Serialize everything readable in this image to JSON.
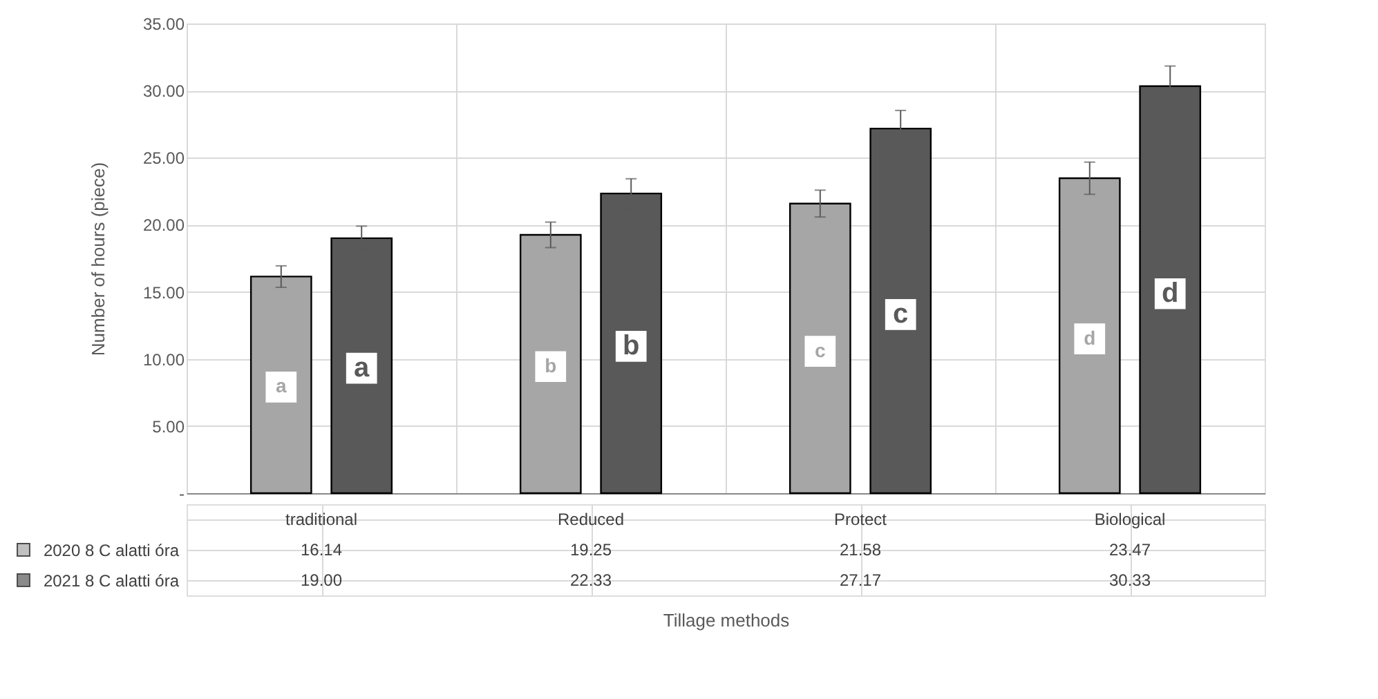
{
  "chart_data": {
    "type": "bar",
    "categories": [
      "traditional",
      "Reduced",
      "Protect",
      "Biological"
    ],
    "series": [
      {
        "name": "2020 8 C alatti óra",
        "color": "#a6a6a6",
        "values": [
          16.14,
          19.25,
          21.58,
          23.47
        ],
        "value_labels": [
          "16.14",
          "19.25",
          "21.58",
          "23.47"
        ],
        "errors": [
          0.8,
          0.95,
          1.0,
          1.2
        ]
      },
      {
        "name": "2021 8 C alatti óra",
        "color": "#595959",
        "values": [
          19.0,
          22.33,
          27.17,
          30.33
        ],
        "value_labels": [
          "19.00",
          "22.33",
          "27.17",
          "30.33"
        ],
        "errors": [
          0.9,
          1.1,
          1.35,
          1.5
        ]
      }
    ],
    "ylabel": "Number of hours (piece)",
    "xlabel": "Tillage methods",
    "ylim": [
      0,
      35
    ],
    "yticks": [
      {
        "value": 0,
        "label": "-"
      },
      {
        "value": 5,
        "label": "5.00"
      },
      {
        "value": 10,
        "label": "10.00"
      },
      {
        "value": 15,
        "label": "15.00"
      },
      {
        "value": 20,
        "label": "20.00"
      },
      {
        "value": 25,
        "label": "25.00"
      },
      {
        "value": 30,
        "label": "30.00"
      },
      {
        "value": 35,
        "label": "35.00"
      }
    ],
    "grid": "y",
    "legend": "bottom left",
    "annotations": [
      "a",
      "a",
      "b",
      "b",
      "c",
      "c",
      "d",
      "d"
    ]
  }
}
